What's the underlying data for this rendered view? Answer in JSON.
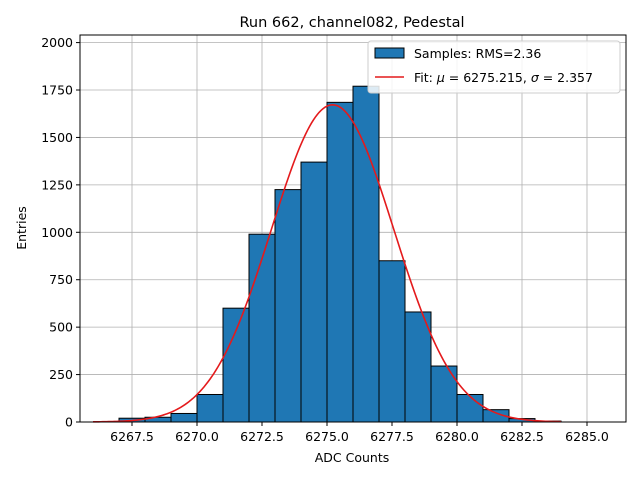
{
  "chart_data": {
    "type": "bar",
    "title": "Run 662, channel082, Pedestal",
    "xlabel": "ADC Counts",
    "ylabel": "Entries",
    "xlim": [
      6265.5,
      6286.5
    ],
    "ylim": [
      0,
      2040
    ],
    "grid": true,
    "x_ticks": [
      {
        "value": 6267.5,
        "label": "6267.5"
      },
      {
        "value": 6270.0,
        "label": "6270.0"
      },
      {
        "value": 6272.5,
        "label": "6272.5"
      },
      {
        "value": 6275.0,
        "label": "6275.0"
      },
      {
        "value": 6277.5,
        "label": "6277.5"
      },
      {
        "value": 6280.0,
        "label": "6280.0"
      },
      {
        "value": 6282.5,
        "label": "6282.5"
      },
      {
        "value": 6285.0,
        "label": "6285.0"
      }
    ],
    "y_ticks": [
      {
        "value": 0,
        "label": "0"
      },
      {
        "value": 250,
        "label": "250"
      },
      {
        "value": 500,
        "label": "500"
      },
      {
        "value": 750,
        "label": "750"
      },
      {
        "value": 1000,
        "label": "1000"
      },
      {
        "value": 1250,
        "label": "1250"
      },
      {
        "value": 1500,
        "label": "1500"
      },
      {
        "value": 1750,
        "label": "1750"
      },
      {
        "value": 2000,
        "label": "2000"
      }
    ],
    "bins": [
      {
        "start": 6267.0,
        "end": 6268.0,
        "value": 20
      },
      {
        "start": 6268.0,
        "end": 6269.0,
        "value": 25
      },
      {
        "start": 6269.0,
        "end": 6270.0,
        "value": 45
      },
      {
        "start": 6270.0,
        "end": 6271.0,
        "value": 145
      },
      {
        "start": 6271.0,
        "end": 6272.0,
        "value": 600
      },
      {
        "start": 6272.0,
        "end": 6273.0,
        "value": 990
      },
      {
        "start": 6273.0,
        "end": 6274.0,
        "value": 1225
      },
      {
        "start": 6274.0,
        "end": 6275.0,
        "value": 1370
      },
      {
        "start": 6275.0,
        "end": 6276.0,
        "value": 1685
      },
      {
        "start": 6276.0,
        "end": 6277.0,
        "value": 1770
      },
      {
        "start": 6277.0,
        "end": 6278.0,
        "value": 850
      },
      {
        "start": 6278.0,
        "end": 6279.0,
        "value": 580
      },
      {
        "start": 6279.0,
        "end": 6280.0,
        "value": 295
      },
      {
        "start": 6280.0,
        "end": 6281.0,
        "value": 145
      },
      {
        "start": 6281.0,
        "end": 6282.0,
        "value": 65
      },
      {
        "start": 6282.0,
        "end": 6283.0,
        "value": 18
      },
      {
        "start": 6283.0,
        "end": 6284.0,
        "value": 5
      }
    ],
    "fit": {
      "mu": 6275.215,
      "sigma": 2.357,
      "amplitude": 1672,
      "x_range": [
        6266.0,
        6284.0
      ]
    },
    "legend": {
      "position": "top-right",
      "entries": [
        {
          "kind": "bar",
          "label": "Samples: RMS=2.36"
        },
        {
          "kind": "line",
          "label_prefix": "Fit: ",
          "mu_symbol": "μ",
          "mu_text": " = 6275.215, ",
          "sigma_symbol": "σ",
          "sigma_text": " = 2.357"
        }
      ]
    },
    "colors": {
      "bar_fill": "#1f77b4",
      "bar_edge": "#000000",
      "fit_line": "#e41a1c",
      "grid": "#b0b0b0"
    }
  }
}
